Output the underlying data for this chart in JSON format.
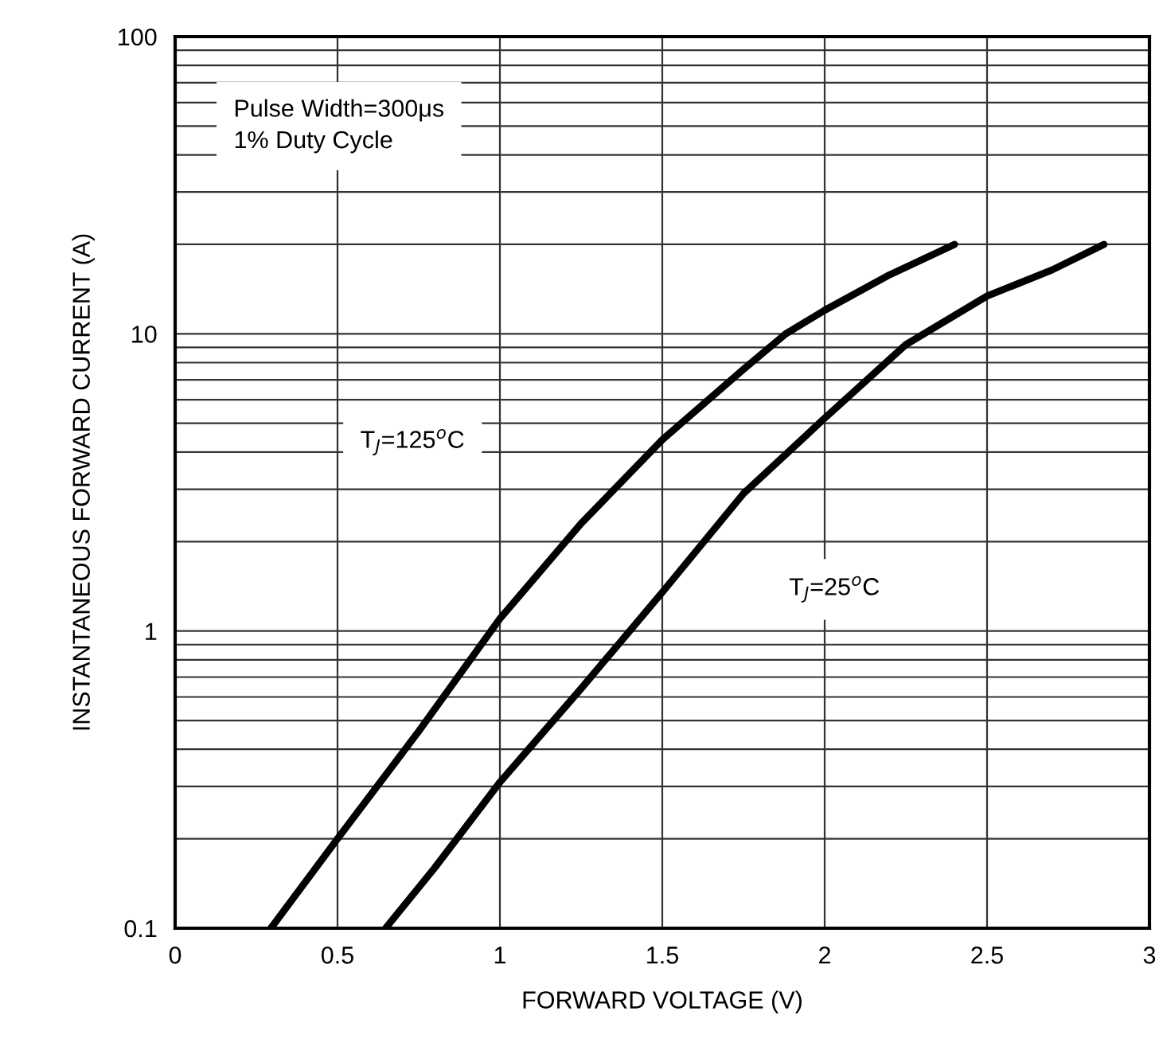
{
  "chart_data": {
    "type": "line",
    "xlabel": "FORWARD VOLTAGE (V)",
    "ylabel": "INSTANTANEOUS FORWARD CURRENT (A)",
    "series": [
      {
        "color": "#000000",
        "x": [
          0.295,
          0.5,
          0.75,
          1.0,
          1.25,
          1.5,
          1.75,
          1.88,
          2.0,
          2.2,
          2.4
        ],
        "values": [
          0.1,
          0.2,
          0.46,
          1.1,
          2.3,
          4.4,
          7.6,
          10,
          12,
          15.8,
          20
        ]
      },
      {
        "color": "#000000",
        "x": [
          0.648,
          0.8,
          1.0,
          1.25,
          1.5,
          1.75,
          2.0,
          2.25,
          2.5,
          2.7,
          2.86
        ],
        "values": [
          0.1,
          0.16,
          0.31,
          0.64,
          1.35,
          2.9,
          5.2,
          9.2,
          13.4,
          16.4,
          20
        ]
      }
    ],
    "annotations": [
      "Pulse Width=300μs\n1% Duty Cycle",
      "T$_{J}$=125$^{o}$C",
      "T$_{J}$=25$^{o}$C"
    ],
    "log": "y",
    "xlim": [
      0,
      3
    ],
    "xticks": [
      0,
      0.5,
      1,
      1.5,
      2,
      2.5,
      3
    ],
    "ylim": [
      0.1,
      100
    ],
    "yticks": [
      0.1,
      1,
      10,
      100
    ],
    "grid": true,
    "legend": false,
    "marker": "none",
    "line_style": "solid"
  }
}
